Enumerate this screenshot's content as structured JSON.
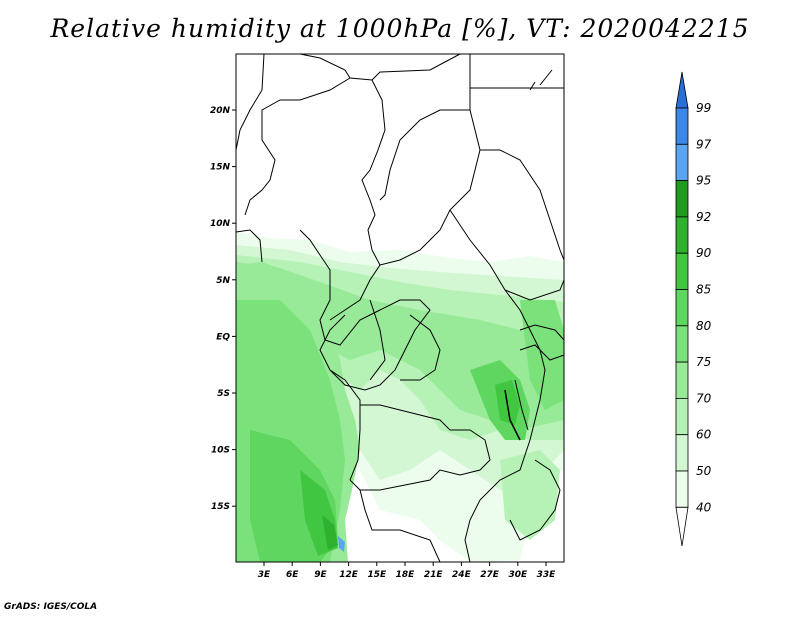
{
  "title": "Relative humidity at 1000hPa [%], VT: 2020042215",
  "credit": "GrADS: IGES/COLA",
  "map": {
    "lon_ticks": [
      "3E",
      "6E",
      "9E",
      "12E",
      "15E",
      "18E",
      "21E",
      "24E",
      "27E",
      "30E",
      "33E"
    ],
    "lat_ticks": [
      "20N",
      "15N",
      "10N",
      "5N",
      "EQ",
      "5S",
      "10S",
      "15S"
    ]
  },
  "colorbar": {
    "levels": [
      "99",
      "97",
      "95",
      "92",
      "90",
      "85",
      "80",
      "75",
      "70",
      "60",
      "50",
      "40"
    ],
    "colors": {
      "c99": "#2a6fd6",
      "c97": "#3d87e6",
      "c95": "#5aa4f0",
      "c92": "#1e9a1e",
      "c90": "#2fb12f",
      "c85": "#41c641",
      "c80": "#5fd65f",
      "c75": "#7be27b",
      "c70": "#98ea98",
      "c60": "#b6f2b6",
      "c50": "#d3f7d3",
      "c40": "#edfded",
      "below": "#ffffff"
    }
  }
}
